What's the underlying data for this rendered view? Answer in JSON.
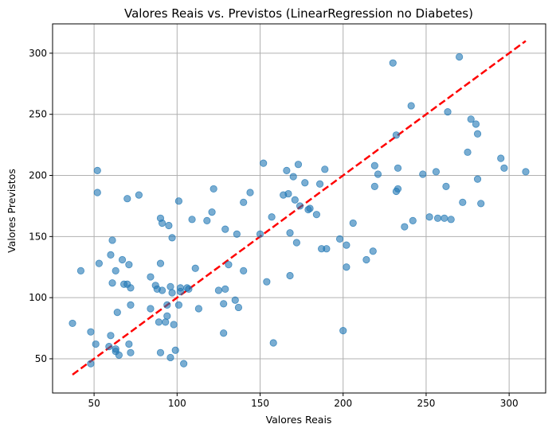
{
  "chart_data": {
    "type": "scatter",
    "title": "Valores Reais vs. Previstos (LinearRegression no Diabetes)",
    "xlabel": "Valores Reais",
    "ylabel": "Valores Previstos",
    "xlim": [
      25,
      322
    ],
    "ylim": [
      22,
      324
    ],
    "xticks": [
      50,
      100,
      150,
      200,
      250,
      300
    ],
    "yticks": [
      50,
      100,
      150,
      200,
      250,
      300
    ],
    "grid": true,
    "colors": {
      "points": "#1f77b4",
      "reference_line": "#ff0000",
      "grid": "#b0b0b0"
    },
    "reference_line": {
      "style": "dashed",
      "x": [
        37,
        310
      ],
      "y": [
        37,
        310
      ]
    },
    "series": [
      {
        "points": [
          [
            37,
            79
          ],
          [
            42,
            122
          ],
          [
            48,
            72
          ],
          [
            48,
            46
          ],
          [
            51,
            62
          ],
          [
            52,
            204
          ],
          [
            52,
            186
          ],
          [
            53,
            128
          ],
          [
            59,
            60
          ],
          [
            60,
            69
          ],
          [
            60,
            135
          ],
          [
            61,
            147
          ],
          [
            61,
            112
          ],
          [
            63,
            122
          ],
          [
            63,
            58
          ],
          [
            63,
            56
          ],
          [
            64,
            88
          ],
          [
            65,
            53
          ],
          [
            67,
            131
          ],
          [
            68,
            111
          ],
          [
            70,
            181
          ],
          [
            70,
            111
          ],
          [
            71,
            127
          ],
          [
            71,
            62
          ],
          [
            72,
            94
          ],
          [
            72,
            55
          ],
          [
            72,
            108
          ],
          [
            77,
            184
          ],
          [
            84,
            117
          ],
          [
            84,
            91
          ],
          [
            87,
            110
          ],
          [
            88,
            107
          ],
          [
            89,
            80
          ],
          [
            90,
            165
          ],
          [
            90,
            128
          ],
          [
            90,
            55
          ],
          [
            91,
            106
          ],
          [
            91,
            161
          ],
          [
            93,
            80
          ],
          [
            94,
            85
          ],
          [
            94,
            94
          ],
          [
            95,
            159
          ],
          [
            96,
            109
          ],
          [
            96,
            51
          ],
          [
            97,
            104
          ],
          [
            97,
            149
          ],
          [
            98,
            78
          ],
          [
            99,
            57
          ],
          [
            101,
            179
          ],
          [
            101,
            94
          ],
          [
            102,
            108
          ],
          [
            102,
            105
          ],
          [
            104,
            46
          ],
          [
            106,
            108
          ],
          [
            107,
            107
          ],
          [
            109,
            164
          ],
          [
            111,
            124
          ],
          [
            113,
            91
          ],
          [
            118,
            163
          ],
          [
            121,
            170
          ],
          [
            122,
            189
          ],
          [
            125,
            106
          ],
          [
            128,
            95
          ],
          [
            128,
            71
          ],
          [
            129,
            156
          ],
          [
            129,
            107
          ],
          [
            131,
            127
          ],
          [
            135,
            98
          ],
          [
            136,
            152
          ],
          [
            137,
            92
          ],
          [
            140,
            122
          ],
          [
            140,
            178
          ],
          [
            144,
            186
          ],
          [
            150,
            152
          ],
          [
            152,
            210
          ],
          [
            154,
            113
          ],
          [
            157,
            166
          ],
          [
            158,
            63
          ],
          [
            164,
            184
          ],
          [
            166,
            204
          ],
          [
            167,
            185
          ],
          [
            168,
            118
          ],
          [
            168,
            153
          ],
          [
            170,
            199
          ],
          [
            171,
            180
          ],
          [
            172,
            145
          ],
          [
            173,
            209
          ],
          [
            174,
            175
          ],
          [
            177,
            194
          ],
          [
            179,
            172
          ],
          [
            180,
            173
          ],
          [
            184,
            168
          ],
          [
            186,
            193
          ],
          [
            187,
            140
          ],
          [
            189,
            205
          ],
          [
            190,
            140
          ],
          [
            198,
            148
          ],
          [
            200,
            73
          ],
          [
            202,
            125
          ],
          [
            202,
            143
          ],
          [
            206,
            161
          ],
          [
            214,
            131
          ],
          [
            218,
            138
          ],
          [
            219,
            208
          ],
          [
            219,
            191
          ],
          [
            221,
            201
          ],
          [
            230,
            292
          ],
          [
            232,
            187
          ],
          [
            232,
            233
          ],
          [
            233,
            206
          ],
          [
            233,
            189
          ],
          [
            237,
            158
          ],
          [
            241,
            257
          ],
          [
            242,
            163
          ],
          [
            248,
            201
          ],
          [
            252,
            166
          ],
          [
            256,
            203
          ],
          [
            257,
            165
          ],
          [
            261,
            165
          ],
          [
            262,
            191
          ],
          [
            263,
            252
          ],
          [
            265,
            164
          ],
          [
            270,
            297
          ],
          [
            272,
            178
          ],
          [
            275,
            219
          ],
          [
            277,
            246
          ],
          [
            280,
            242
          ],
          [
            281,
            197
          ],
          [
            281,
            234
          ],
          [
            283,
            177
          ],
          [
            295,
            214
          ],
          [
            297,
            206
          ],
          [
            310,
            203
          ]
        ]
      }
    ]
  }
}
